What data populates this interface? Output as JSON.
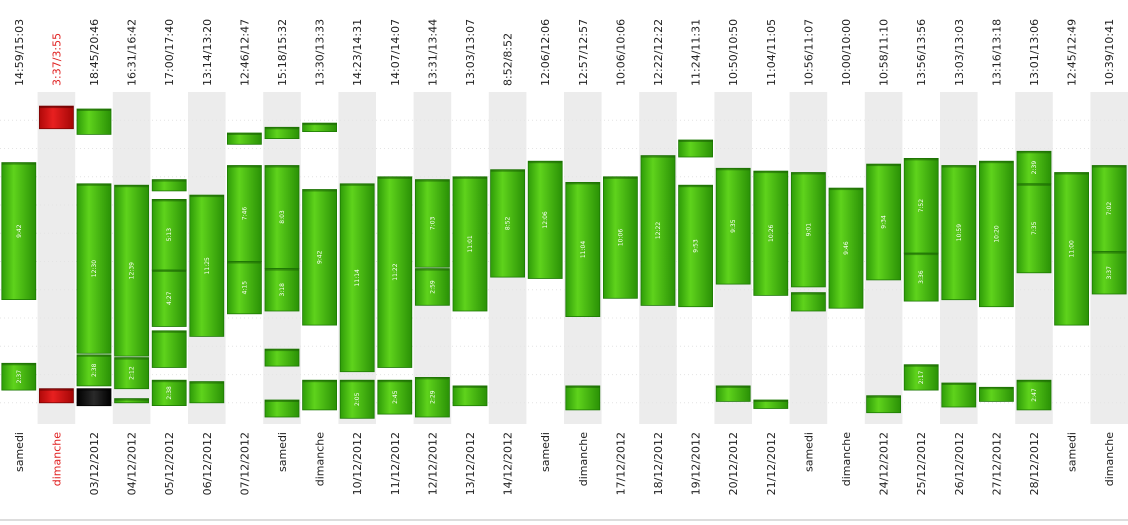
{
  "chart_data": {
    "type": "bar",
    "y_axis": "time of day (hours), increasing downward",
    "colors": {
      "normal_fill": "#3fb810",
      "normal_dark": "#1f8a05",
      "highlight_fill": "#d21010",
      "dark_fill": "#101010",
      "highlight_text": "#e02020",
      "stripe": "#ececec"
    },
    "days": [
      {
        "day": "samedi",
        "span": "14:59/15:03",
        "highlight": false,
        "segments": [
          {
            "start": 9.0,
            "end": 18.7,
            "label": "9:42"
          },
          {
            "start": 23.2,
            "end": 25.1,
            "label": "2:37"
          }
        ]
      },
      {
        "day": "dimanche",
        "span": "3:37/3:55",
        "highlight": true,
        "segments": [
          {
            "start": 5.0,
            "end": 6.6,
            "label": "",
            "color": "red"
          },
          {
            "start": 25.0,
            "end": 26.0,
            "label": "",
            "color": "red"
          }
        ]
      },
      {
        "day": "03/12/2012",
        "span": "18:45/20:46",
        "highlight": false,
        "segments": [
          {
            "start": 5.2,
            "end": 7.0,
            "label": ""
          },
          {
            "start": 10.5,
            "end": 22.5,
            "label": "12:30"
          },
          {
            "start": 22.6,
            "end": 24.8,
            "label": "2:38"
          },
          {
            "start": 25.0,
            "end": 26.2,
            "label": "",
            "color": "dark"
          }
        ]
      },
      {
        "day": "04/12/2012",
        "span": "16:31/16:42",
        "highlight": false,
        "segments": [
          {
            "start": 10.6,
            "end": 22.7,
            "label": "12:39"
          },
          {
            "start": 22.8,
            "end": 25.0,
            "label": "2:12"
          },
          {
            "start": 25.7,
            "end": 26.0,
            "label": ""
          }
        ]
      },
      {
        "day": "05/12/2012",
        "span": "17:00/17:40",
        "highlight": false,
        "segments": [
          {
            "start": 10.2,
            "end": 11.0,
            "label": ""
          },
          {
            "start": 11.6,
            "end": 16.6,
            "label": "5:13"
          },
          {
            "start": 16.6,
            "end": 20.6,
            "label": "4:27"
          },
          {
            "start": 20.9,
            "end": 23.5,
            "label": ""
          },
          {
            "start": 24.4,
            "end": 26.2,
            "label": "2:38"
          }
        ]
      },
      {
        "day": "06/12/2012",
        "span": "13:14/13:20",
        "highlight": false,
        "segments": [
          {
            "start": 11.3,
            "end": 21.3,
            "label": "11:25"
          },
          {
            "start": 24.5,
            "end": 26.0,
            "label": ""
          }
        ]
      },
      {
        "day": "07/12/2012",
        "span": "12:46/12:47",
        "highlight": false,
        "segments": [
          {
            "start": 6.9,
            "end": 7.7,
            "label": ""
          },
          {
            "start": 9.2,
            "end": 16.0,
            "label": "7:46"
          },
          {
            "start": 16.0,
            "end": 19.7,
            "label": "4:15"
          }
        ]
      },
      {
        "day": "samedi",
        "span": "15:18/15:32",
        "highlight": false,
        "segments": [
          {
            "start": 6.5,
            "end": 7.3,
            "label": ""
          },
          {
            "start": 9.2,
            "end": 16.5,
            "label": "8:03"
          },
          {
            "start": 16.5,
            "end": 19.5,
            "label": "3:18"
          },
          {
            "start": 22.2,
            "end": 23.4,
            "label": ""
          },
          {
            "start": 25.8,
            "end": 27.0,
            "label": ""
          }
        ]
      },
      {
        "day": "dimanche",
        "span": "13:30/13:33",
        "highlight": false,
        "segments": [
          {
            "start": 6.2,
            "end": 6.8,
            "label": ""
          },
          {
            "start": 10.9,
            "end": 20.5,
            "label": "9:42"
          },
          {
            "start": 24.4,
            "end": 26.5,
            "label": ""
          }
        ]
      },
      {
        "day": "10/12/2012",
        "span": "14:23/14:31",
        "highlight": false,
        "segments": [
          {
            "start": 10.5,
            "end": 23.8,
            "label": "11:14"
          },
          {
            "start": 24.4,
            "end": 27.1,
            "label": "2:05"
          }
        ]
      },
      {
        "day": "11/12/2012",
        "span": "14:07/14:07",
        "highlight": false,
        "segments": [
          {
            "start": 10.0,
            "end": 23.5,
            "label": "11:22"
          },
          {
            "start": 24.4,
            "end": 26.8,
            "label": "2:45"
          }
        ]
      },
      {
        "day": "12/12/2012",
        "span": "13:31/13:44",
        "highlight": false,
        "segments": [
          {
            "start": 10.2,
            "end": 16.4,
            "label": "7:03"
          },
          {
            "start": 16.5,
            "end": 19.1,
            "label": "2:59"
          },
          {
            "start": 24.2,
            "end": 27.0,
            "label": "2:29"
          }
        ]
      },
      {
        "day": "13/12/2012",
        "span": "13:03/13:07",
        "highlight": false,
        "segments": [
          {
            "start": 10.0,
            "end": 19.5,
            "label": "11:01"
          },
          {
            "start": 24.8,
            "end": 26.2,
            "label": ""
          }
        ]
      },
      {
        "day": "14/12/2012",
        "span": "8:52/8:52",
        "highlight": false,
        "segments": [
          {
            "start": 9.5,
            "end": 17.1,
            "label": "8:52"
          }
        ]
      },
      {
        "day": "samedi",
        "span": "12:06/12:06",
        "highlight": false,
        "segments": [
          {
            "start": 8.9,
            "end": 17.2,
            "label": "12:06"
          }
        ]
      },
      {
        "day": "dimanche",
        "span": "12:57/12:57",
        "highlight": false,
        "segments": [
          {
            "start": 10.4,
            "end": 19.9,
            "label": "11:04"
          },
          {
            "start": 24.8,
            "end": 26.5,
            "label": ""
          }
        ]
      },
      {
        "day": "17/12/2012",
        "span": "10:06/10:06",
        "highlight": false,
        "segments": [
          {
            "start": 10.0,
            "end": 18.6,
            "label": "10:06"
          }
        ]
      },
      {
        "day": "18/12/2012",
        "span": "12:22/12:22",
        "highlight": false,
        "segments": [
          {
            "start": 8.5,
            "end": 19.1,
            "label": "12:22"
          }
        ]
      },
      {
        "day": "19/12/2012",
        "span": "11:24/11:31",
        "highlight": false,
        "segments": [
          {
            "start": 7.4,
            "end": 8.6,
            "label": ""
          },
          {
            "start": 10.6,
            "end": 19.2,
            "label": "9:53"
          }
        ]
      },
      {
        "day": "20/12/2012",
        "span": "10:50/10:50",
        "highlight": false,
        "segments": [
          {
            "start": 9.4,
            "end": 17.6,
            "label": "9:35"
          },
          {
            "start": 24.8,
            "end": 25.9,
            "label": ""
          }
        ]
      },
      {
        "day": "21/12/2012",
        "span": "11:04/11:05",
        "highlight": false,
        "segments": [
          {
            "start": 9.6,
            "end": 18.4,
            "label": "10:26"
          },
          {
            "start": 25.8,
            "end": 26.4,
            "label": ""
          }
        ]
      },
      {
        "day": "samedi",
        "span": "10:56/11:07",
        "highlight": false,
        "segments": [
          {
            "start": 9.7,
            "end": 17.8,
            "label": "9:01"
          },
          {
            "start": 18.2,
            "end": 19.5,
            "label": ""
          }
        ]
      },
      {
        "day": "dimanche",
        "span": "10:00/10:00",
        "highlight": false,
        "segments": [
          {
            "start": 10.8,
            "end": 19.3,
            "label": "9:46"
          }
        ]
      },
      {
        "day": "24/12/2012",
        "span": "10:58/11:10",
        "highlight": false,
        "segments": [
          {
            "start": 9.1,
            "end": 17.3,
            "label": "9:34"
          },
          {
            "start": 25.5,
            "end": 26.7,
            "label": ""
          }
        ]
      },
      {
        "day": "25/12/2012",
        "span": "13:56/13:56",
        "highlight": false,
        "segments": [
          {
            "start": 8.7,
            "end": 15.4,
            "label": "7:52"
          },
          {
            "start": 15.4,
            "end": 18.8,
            "label": "3:36"
          },
          {
            "start": 23.3,
            "end": 25.1,
            "label": "2:17"
          }
        ]
      },
      {
        "day": "26/12/2012",
        "span": "13:03/13:03",
        "highlight": false,
        "segments": [
          {
            "start": 9.2,
            "end": 18.7,
            "label": "10:59"
          },
          {
            "start": 24.6,
            "end": 26.3,
            "label": ""
          }
        ]
      },
      {
        "day": "27/12/2012",
        "span": "13:16/13:18",
        "highlight": false,
        "segments": [
          {
            "start": 8.9,
            "end": 19.2,
            "label": "10:20"
          },
          {
            "start": 24.9,
            "end": 25.9,
            "label": ""
          }
        ]
      },
      {
        "day": "28/12/2012",
        "span": "13:01/13:06",
        "highlight": false,
        "segments": [
          {
            "start": 8.2,
            "end": 10.5,
            "label": "2:39"
          },
          {
            "start": 10.5,
            "end": 16.8,
            "label": "7:35"
          },
          {
            "start": 24.4,
            "end": 26.5,
            "label": "2:47"
          }
        ]
      },
      {
        "day": "samedi",
        "span": "12:45/12:49",
        "highlight": false,
        "segments": [
          {
            "start": 9.7,
            "end": 20.5,
            "label": "11:00"
          }
        ]
      },
      {
        "day": "dimanche",
        "span": "10:39/10:41",
        "highlight": false,
        "segments": [
          {
            "start": 9.2,
            "end": 15.3,
            "label": "7:02"
          },
          {
            "start": 15.3,
            "end": 18.3,
            "label": "3:37"
          }
        ]
      }
    ]
  }
}
